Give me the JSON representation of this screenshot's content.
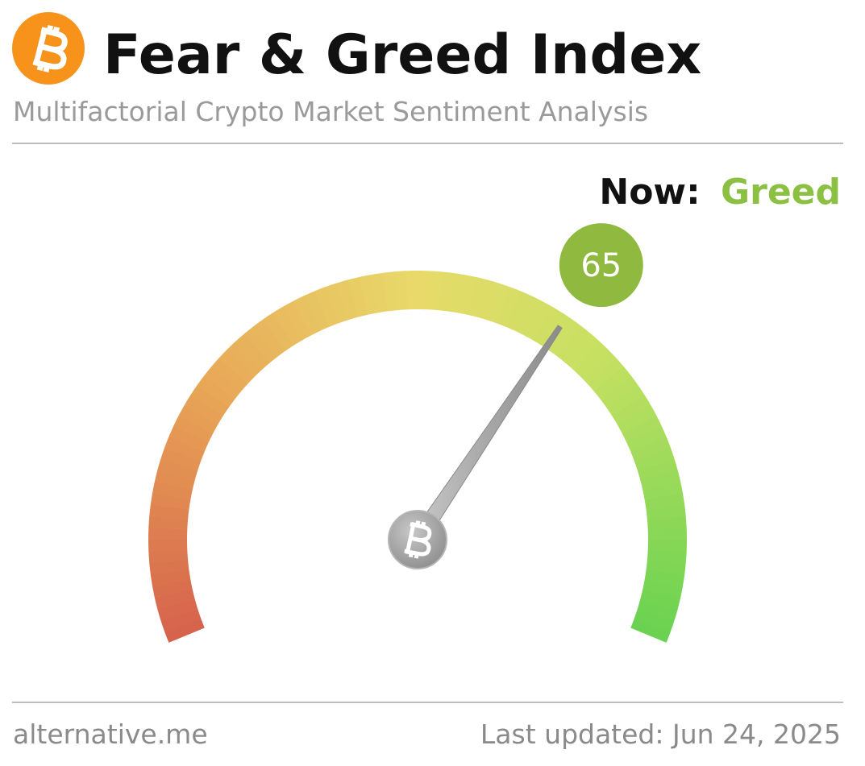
{
  "chart_data": {
    "type": "gauge",
    "title": "Fear & Greed Index",
    "subtitle": "Multifactorial Crypto Market Sentiment Analysis",
    "now_label": "Now:",
    "classification": "Greed",
    "classification_color": "#8cc043",
    "value": 65,
    "value_color": "#8fba3f",
    "ylim": [
      0,
      100
    ],
    "source": "alternative.me",
    "updated": "Last updated: Jun 24, 2025"
  }
}
